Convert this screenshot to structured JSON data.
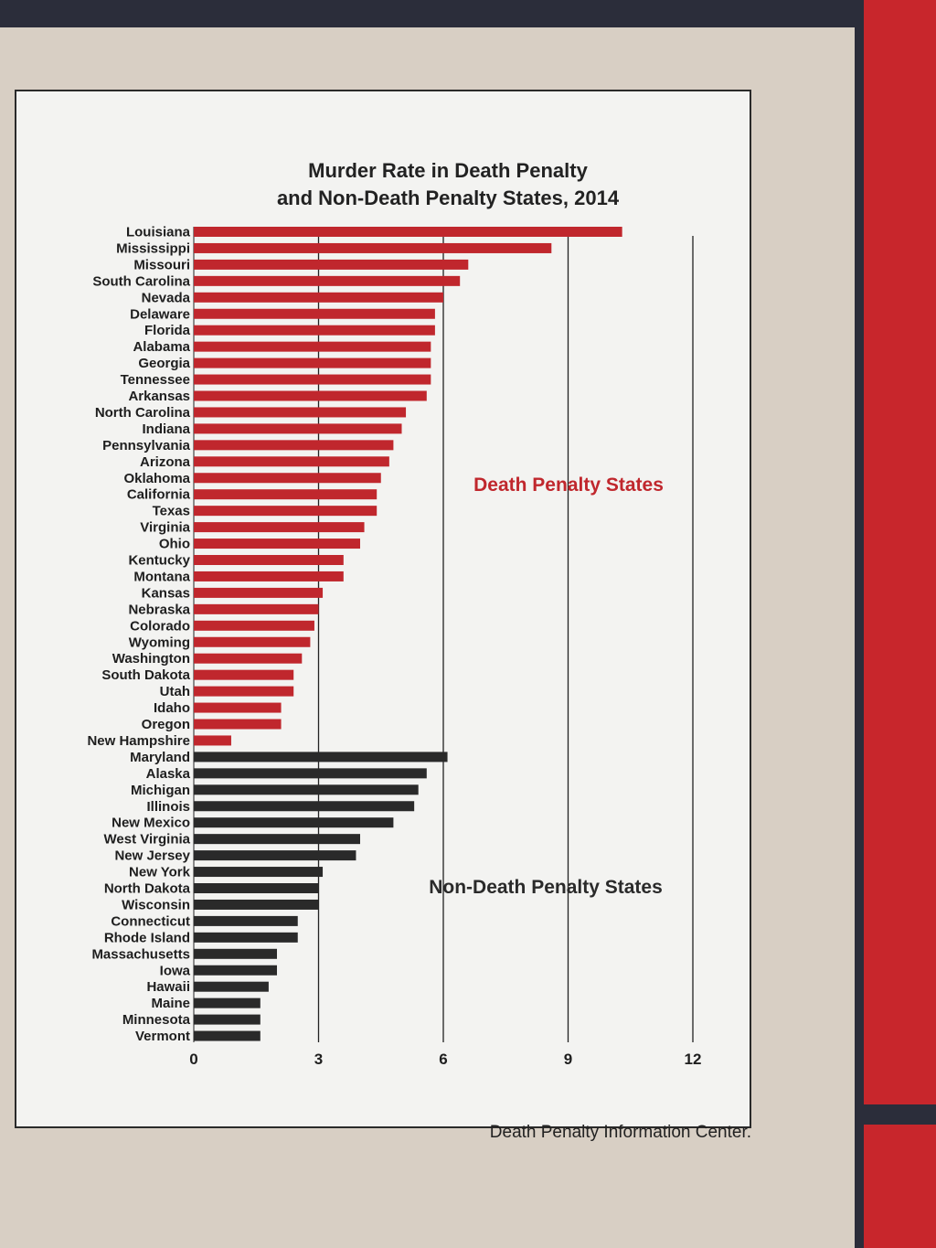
{
  "chart_data": {
    "type": "bar",
    "orientation": "horizontal",
    "title": "Murder Rate in Death Penalty and Non-Death Penalty States, 2014",
    "title_lines": [
      "Murder Rate in Death Penalty",
      "and Non-Death Penalty States, 2014"
    ],
    "xlabel": "",
    "ylabel": "",
    "xlim": [
      0,
      12
    ],
    "xticks": [
      0,
      3,
      6,
      9,
      12
    ],
    "grid": true,
    "series": [
      {
        "name": "Death Penalty States",
        "color": "#c0272d",
        "categories": [
          "Louisiana",
          "Mississippi",
          "Missouri",
          "South Carolina",
          "Nevada",
          "Delaware",
          "Florida",
          "Alabama",
          "Georgia",
          "Tennessee",
          "Arkansas",
          "North Carolina",
          "Indiana",
          "Pennsylvania",
          "Arizona",
          "Oklahoma",
          "California",
          "Texas",
          "Virginia",
          "Ohio",
          "Kentucky",
          "Montana",
          "Kansas",
          "Nebraska",
          "Colorado",
          "Wyoming",
          "Washington",
          "South Dakota",
          "Utah",
          "Idaho",
          "Oregon",
          "New Hampshire"
        ],
        "values": [
          10.3,
          8.6,
          6.6,
          6.4,
          6.0,
          5.8,
          5.8,
          5.7,
          5.7,
          5.7,
          5.6,
          5.1,
          5.0,
          4.8,
          4.7,
          4.5,
          4.4,
          4.4,
          4.1,
          4.0,
          3.6,
          3.6,
          3.1,
          3.0,
          2.9,
          2.8,
          2.6,
          2.4,
          2.4,
          2.1,
          2.1,
          0.9
        ]
      },
      {
        "name": "Non-Death Penalty States",
        "color": "#2a2a2a",
        "categories": [
          "Maryland",
          "Alaska",
          "Michigan",
          "Illinois",
          "New Mexico",
          "West Virginia",
          "New Jersey",
          "New York",
          "North Dakota",
          "Wisconsin",
          "Connecticut",
          "Rhode Island",
          "Massachusetts",
          "Iowa",
          "Hawaii",
          "Maine",
          "Minnesota",
          "Vermont"
        ],
        "values": [
          6.1,
          5.6,
          5.4,
          5.3,
          4.8,
          4.0,
          3.9,
          3.1,
          3.0,
          3.0,
          2.5,
          2.5,
          2.0,
          2.0,
          1.8,
          1.6,
          1.6,
          1.6
        ]
      }
    ],
    "group_labels": [
      "Death Penalty States",
      "Non-Death Penalty States"
    ]
  },
  "credit": "Death Penalty Information Center."
}
